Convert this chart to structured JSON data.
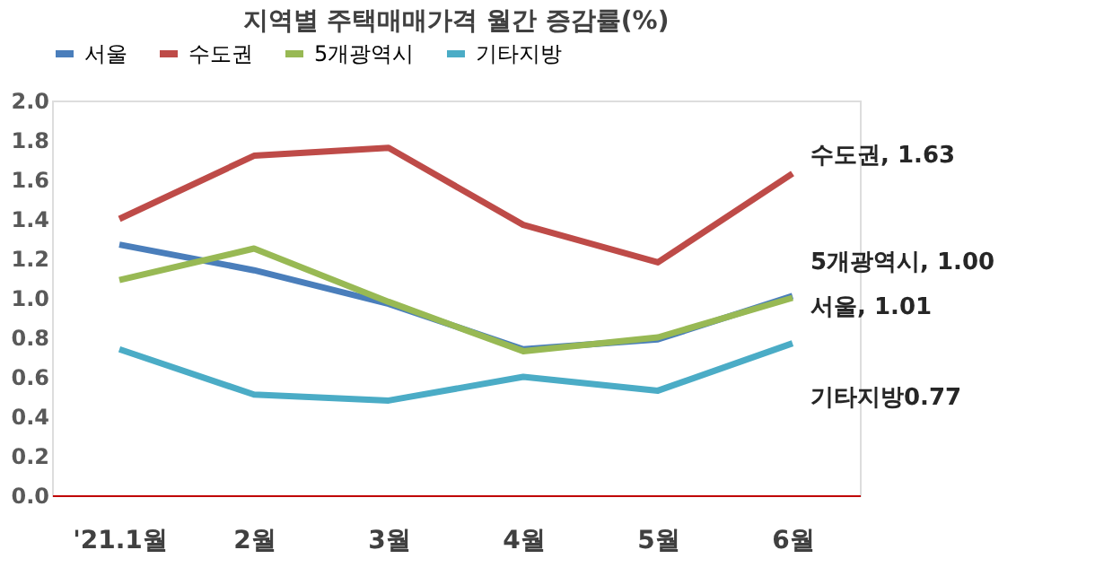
{
  "chart_data": {
    "type": "line",
    "title": "지역별 주택매매가격 월간 증감률(%)",
    "categories": [
      "'21.1월",
      "2월",
      "3월",
      "4월",
      "5월",
      "6월"
    ],
    "series": [
      {
        "name": "서울",
        "color": "#4a7ebb",
        "values": [
          1.27,
          1.14,
          0.97,
          0.74,
          0.79,
          1.01
        ]
      },
      {
        "name": "수도권",
        "color": "#be4b48",
        "values": [
          1.4,
          1.72,
          1.76,
          1.37,
          1.18,
          1.63
        ]
      },
      {
        "name": "5개광역시",
        "color": "#98b954",
        "values": [
          1.09,
          1.25,
          0.98,
          0.73,
          0.8,
          1.0
        ]
      },
      {
        "name": "기타지방",
        "color": "#4bacc6",
        "values": [
          0.74,
          0.51,
          0.48,
          0.6,
          0.53,
          0.77
        ]
      }
    ],
    "ylim": [
      0,
      2.0
    ],
    "yticks": [
      {
        "value": 0,
        "label": "0.0"
      },
      {
        "value": 0.2,
        "label": "0.2"
      },
      {
        "value": 0.4,
        "label": "0.4"
      },
      {
        "value": 0.6,
        "label": "0.6"
      },
      {
        "value": 0.8,
        "label": "0.8"
      },
      {
        "value": 1.0,
        "label": "1.0"
      },
      {
        "value": 1.2,
        "label": "1.2"
      },
      {
        "value": 1.4,
        "label": "1.4"
      },
      {
        "value": 1.6,
        "label": "1.6"
      },
      {
        "value": 1.8,
        "label": "1.8"
      },
      {
        "value": 2.0,
        "label": "2.0"
      }
    ],
    "annotations": [
      {
        "text": "수도권, 1.63",
        "x": "6월",
        "y": 1.63
      },
      {
        "text": "5개광역시, 1.00",
        "x": "6월",
        "y": 1.0
      },
      {
        "text": "서울, 1.01",
        "x": "6월",
        "y": 1.01
      },
      {
        "text": "기타지방0.77",
        "x": "6월",
        "y": 0.77
      }
    ],
    "grid": false,
    "legend": "top",
    "marker": "none",
    "line_style": "solid"
  }
}
